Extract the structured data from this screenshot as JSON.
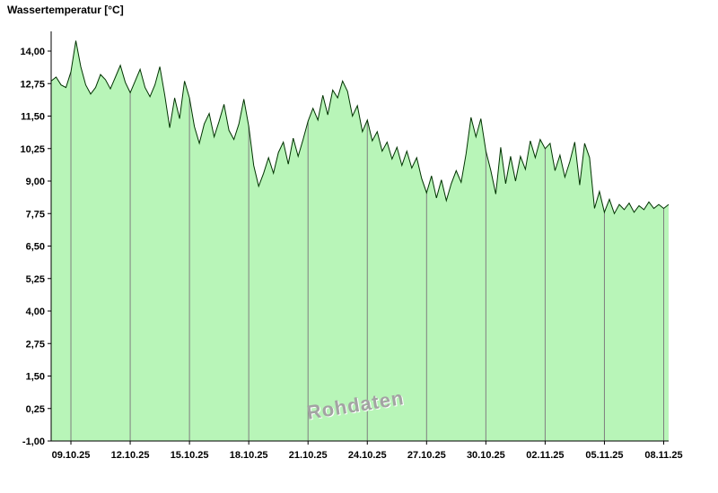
{
  "title": "Wassertemperatur [°C]",
  "watermark": "Rohdaten",
  "colors": {
    "area_fill": "#b8f5b8",
    "line": "#003300",
    "grid": "#7f7f7f",
    "axis": "#000000",
    "watermark": "#a3a3a3"
  },
  "chart_data": {
    "type": "area",
    "title": "Wassertemperatur [°C]",
    "ylabel": "Wassertemperatur [°C]",
    "xlabel": "",
    "legend": "none",
    "grid": "vertical-only",
    "annotations": [
      "Rohdaten"
    ],
    "ylim": [
      -1.0,
      14.8
    ],
    "y_ticks": [
      "14,00",
      "12,75",
      "11,50",
      "10,25",
      "9,00",
      "7,75",
      "6,50",
      "5,25",
      "4,00",
      "2,75",
      "1,50",
      "0,25",
      "-1,00"
    ],
    "y_tick_values": [
      14.0,
      12.75,
      11.5,
      10.25,
      9.0,
      7.75,
      6.5,
      5.25,
      4.0,
      2.75,
      1.5,
      0.25,
      -1.0
    ],
    "x_ticks": [
      "09.10.25",
      "12.10.25",
      "15.10.25",
      "18.10.25",
      "21.10.25",
      "24.10.25",
      "27.10.25",
      "30.10.25",
      "02.11.25",
      "05.11.25",
      "08.11.25"
    ],
    "x_tick_days": [
      1,
      4,
      7,
      10,
      13,
      16,
      19,
      22,
      25,
      28,
      31
    ],
    "t_min": 0,
    "t_max": 31.25,
    "step_days": 0.25,
    "values": [
      12.85,
      13.0,
      12.7,
      12.6,
      13.2,
      14.4,
      13.4,
      12.7,
      12.35,
      12.6,
      13.1,
      12.9,
      12.55,
      13.0,
      13.45,
      12.8,
      12.4,
      12.85,
      13.3,
      12.6,
      12.25,
      12.7,
      13.4,
      12.3,
      11.05,
      12.2,
      11.4,
      12.85,
      12.2,
      11.1,
      10.45,
      11.2,
      11.6,
      10.7,
      11.3,
      11.95,
      10.95,
      10.6,
      11.2,
      12.15,
      11.1,
      9.6,
      8.8,
      9.3,
      9.9,
      9.3,
      10.1,
      10.5,
      9.65,
      10.65,
      9.95,
      10.6,
      11.3,
      11.8,
      11.35,
      12.3,
      11.55,
      12.5,
      12.2,
      12.85,
      12.45,
      11.5,
      11.9,
      10.9,
      11.35,
      10.55,
      10.9,
      10.15,
      10.5,
      9.85,
      10.3,
      9.6,
      10.15,
      9.5,
      9.9,
      9.1,
      8.55,
      9.2,
      8.35,
      9.05,
      8.25,
      8.9,
      9.4,
      8.95,
      10.05,
      11.45,
      10.7,
      11.4,
      10.15,
      9.4,
      8.5,
      10.3,
      8.9,
      9.95,
      9.0,
      9.95,
      9.45,
      10.55,
      9.9,
      10.6,
      10.25,
      10.45,
      9.4,
      10.0,
      9.15,
      9.75,
      10.5,
      8.85,
      10.45,
      9.9,
      7.95,
      8.6,
      7.8,
      8.3,
      7.75,
      8.1,
      7.9,
      8.15,
      7.8,
      8.05,
      7.9,
      8.2,
      7.95,
      8.1,
      7.95,
      8.1
    ]
  }
}
